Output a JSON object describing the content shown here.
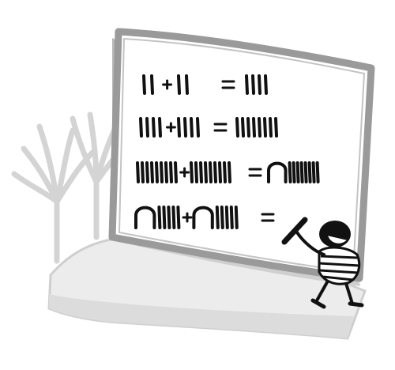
{
  "colors": {
    "background": "#ffffff",
    "ink": "#111111",
    "board_frame": "#9a9a9a",
    "board_shadow": "#b8b8b8",
    "ground": "#e6e6e6",
    "ground_edge": "#cfcfcf",
    "trees": "#d4d4d4"
  },
  "equations": [
    {
      "left": 2,
      "op": "+",
      "right": 2,
      "result": 4
    },
    {
      "left": 4,
      "op": "+",
      "right": 4,
      "result": 8
    },
    {
      "left": 9,
      "op": "+",
      "right": 9,
      "result": 18
    },
    {
      "left": 15,
      "op": "+",
      "right": 15,
      "result": null
    }
  ],
  "icons": {
    "child": "child-writing-icon",
    "marker": "marker-icon",
    "trees": "bare-tree-icon"
  }
}
